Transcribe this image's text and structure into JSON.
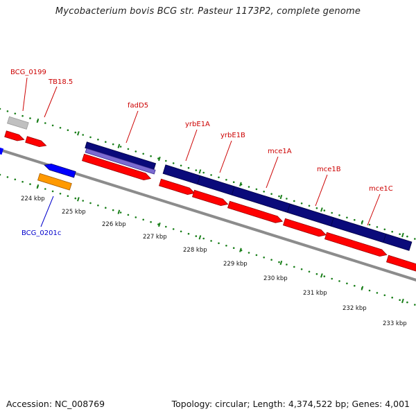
{
  "title": "Mycobacterium bovis BCG str. Pasteur 1173P2, complete genome",
  "footer": {
    "accession": "Accession: NC_008769",
    "topology": "Topology: circular; Length: 4,374,522 bp; Genes: 4,001"
  },
  "colors": {
    "backbone": "#8c8c8c",
    "tick": "#1a7f1a",
    "forward_gene": "#ff0000",
    "reverse_gene": "#0000ff",
    "gene_label_forward": "#cc0000",
    "gene_label_reverse": "#0000cc",
    "cds_navy": "#0a0a7a",
    "cds_lavender": "#7a6ad0",
    "rna_gray": "#c0c0c0",
    "orange_gene": "#ff9900"
  },
  "tick_labels": [
    "224 kbp",
    "225 kbp",
    "226 kbp",
    "227 kbp",
    "228 kbp",
    "229 kbp",
    "230 kbp",
    "231 kbp",
    "232 kbp",
    "233 kbp"
  ],
  "gene_labels": [
    {
      "name": "BCG_0199",
      "strand": "forward"
    },
    {
      "name": "TB18.5",
      "strand": "forward"
    },
    {
      "name": "fadD5",
      "strand": "forward"
    },
    {
      "name": "yrbE1A",
      "strand": "forward"
    },
    {
      "name": "yrbE1B",
      "strand": "forward"
    },
    {
      "name": "mce1A",
      "strand": "forward"
    },
    {
      "name": "mce1B",
      "strand": "forward"
    },
    {
      "name": "mce1C",
      "strand": "forward"
    },
    {
      "name": "BCG_0201c",
      "strand": "reverse"
    }
  ]
}
